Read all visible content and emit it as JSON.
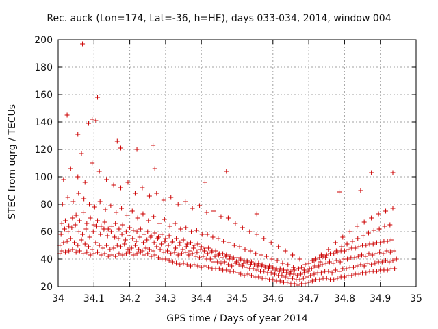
{
  "chart_data": {
    "type": "scatter",
    "title": "Rec. auck (Lon=174, Lat=-36, h=HE), days 033-034, 2014, window 004",
    "xlabel": "GPS time / Days of year 2014",
    "ylabel": "STEC from uqrg / TECUs",
    "xlim": [
      34,
      35
    ],
    "ylim": [
      20,
      200
    ],
    "xticks": [
      34,
      34.1,
      34.2,
      34.3,
      34.4,
      34.5,
      34.6,
      34.7,
      34.8,
      34.9,
      35
    ],
    "xtick_labels": [
      "34",
      "34.1",
      "34.2",
      "34.3",
      "34.4",
      "34.5",
      "34.6",
      "34.7",
      "34.8",
      "34.9",
      "35"
    ],
    "yticks": [
      20,
      40,
      60,
      80,
      100,
      120,
      140,
      160,
      180,
      200
    ],
    "ytick_labels": [
      "20",
      "40",
      "60",
      "80",
      "100",
      "120",
      "140",
      "160",
      "180",
      "200"
    ],
    "grid": true,
    "marker": "+",
    "color": "#cc0000",
    "series": [
      {
        "x": [
          34.005,
          34.01,
          34.02,
          34.03,
          34.04,
          34.05,
          34.06,
          34.07,
          34.08,
          34.09,
          34.1,
          34.11,
          34.12,
          34.13,
          34.14,
          34.15,
          34.16,
          34.17,
          34.18,
          34.19,
          34.2,
          34.21,
          34.22,
          34.23,
          34.24,
          34.25,
          34.26,
          34.27,
          34.28,
          34.29,
          34.3,
          34.31,
          34.32,
          34.33,
          34.34,
          34.35,
          34.36,
          34.37,
          34.38,
          34.39,
          34.4,
          34.41,
          34.42,
          34.43,
          34.44,
          34.45,
          34.46,
          34.47,
          34.48,
          34.49,
          34.5,
          34.51,
          34.52,
          34.53,
          34.54,
          34.55,
          34.56,
          34.57,
          34.58,
          34.59,
          34.6,
          34.61,
          34.62,
          34.63,
          34.64,
          34.65,
          34.66,
          34.67,
          34.68,
          34.69,
          34.7,
          34.71,
          34.72,
          34.73,
          34.74,
          34.75,
          34.76,
          34.77,
          34.78,
          34.79,
          34.8,
          34.81,
          34.82,
          34.83,
          34.84,
          34.85,
          34.86,
          34.87,
          34.88,
          34.89,
          34.9,
          34.91,
          34.92,
          34.93,
          34.94
        ],
        "y": [
          44,
          46,
          45,
          46,
          47,
          45,
          46,
          44,
          45,
          43,
          44,
          45,
          43,
          44,
          42,
          43,
          42,
          44,
          43,
          44,
          45,
          43,
          44,
          45,
          43,
          44,
          42,
          43,
          41,
          40,
          40,
          39,
          38,
          37,
          36,
          37,
          36,
          35,
          36,
          35,
          34,
          35,
          34,
          33,
          33,
          33,
          32,
          32,
          31,
          31,
          30,
          29,
          28,
          29,
          28,
          27,
          27,
          26,
          26,
          25,
          25,
          24,
          24,
          23,
          23,
          22,
          22,
          21,
          22,
          22,
          23,
          24,
          25,
          25,
          26,
          26,
          25,
          25,
          26,
          27,
          27,
          28,
          28,
          29,
          29,
          30,
          30,
          31,
          31,
          31,
          32,
          32,
          32,
          33,
          33
        ]
      },
      {
        "x": [
          34.005,
          34.015,
          34.025,
          34.035,
          34.045,
          34.055,
          34.065,
          34.075,
          34.085,
          34.095,
          34.105,
          34.115,
          34.125,
          34.135,
          34.145,
          34.155,
          34.165,
          34.175,
          34.185,
          34.195,
          34.205,
          34.215,
          34.225,
          34.235,
          34.245,
          34.255,
          34.265,
          34.275,
          34.285,
          34.295,
          34.305,
          34.315,
          34.325,
          34.335,
          34.345,
          34.355,
          34.365,
          34.375,
          34.385,
          34.395,
          34.405,
          34.415,
          34.425,
          34.435,
          34.445,
          34.455,
          34.465,
          34.475,
          34.485,
          34.495,
          34.505,
          34.515,
          34.525,
          34.535,
          34.545,
          34.555,
          34.565,
          34.575,
          34.585,
          34.595,
          34.605,
          34.615,
          34.625,
          34.635,
          34.645,
          34.655,
          34.665,
          34.675,
          34.685,
          34.695,
          34.705,
          34.715,
          34.725,
          34.735,
          34.745,
          34.755,
          34.765,
          34.775,
          34.785,
          34.795,
          34.805,
          34.815,
          34.825,
          34.835,
          34.845,
          34.855,
          34.865,
          34.875,
          34.885,
          34.895,
          34.905,
          34.915,
          34.925,
          34.935,
          34.945
        ],
        "y": [
          50,
          52,
          53,
          55,
          52,
          50,
          54,
          51,
          49,
          47,
          52,
          50,
          48,
          50,
          47,
          48,
          50,
          49,
          51,
          47,
          48,
          50,
          47,
          46,
          48,
          47,
          46,
          49,
          47,
          45,
          46,
          44,
          45,
          43,
          44,
          45,
          43,
          44,
          42,
          41,
          42,
          40,
          40,
          38,
          38,
          37,
          38,
          36,
          35,
          37,
          36,
          35,
          34,
          33,
          33,
          32,
          31,
          31,
          30,
          30,
          29,
          28,
          28,
          27,
          26,
          26,
          25,
          25,
          26,
          27,
          28,
          29,
          30,
          30,
          31,
          31,
          30,
          32,
          31,
          33,
          33,
          34,
          34,
          35,
          36,
          35,
          37,
          36,
          37,
          38,
          38,
          39,
          38,
          39,
          40
        ]
      },
      {
        "x": [
          34.008,
          34.018,
          34.028,
          34.038,
          34.048,
          34.058,
          34.068,
          34.078,
          34.088,
          34.098,
          34.108,
          34.118,
          34.128,
          34.138,
          34.148,
          34.158,
          34.168,
          34.178,
          34.188,
          34.198,
          34.208,
          34.218,
          34.228,
          34.238,
          34.248,
          34.258,
          34.268,
          34.278,
          34.288,
          34.298,
          34.308,
          34.318,
          34.328,
          34.338,
          34.348,
          34.358,
          34.368,
          34.378,
          34.388,
          34.398,
          34.408,
          34.418,
          34.428,
          34.438,
          34.448,
          34.458,
          34.468,
          34.478,
          34.488,
          34.498,
          34.508,
          34.518,
          34.528,
          34.538,
          34.548,
          34.558,
          34.568,
          34.578,
          34.588,
          34.598,
          34.608,
          34.618,
          34.628,
          34.638,
          34.648,
          34.658,
          34.668,
          34.678,
          34.688,
          34.698,
          34.708,
          34.718,
          34.728,
          34.738,
          34.748,
          34.758,
          34.768,
          34.778,
          34.788,
          34.798,
          34.808,
          34.818,
          34.828,
          34.838,
          34.848,
          34.858,
          34.868,
          34.878,
          34.888,
          34.898,
          34.908,
          34.918,
          34.928,
          34.938
        ],
        "y": [
          58,
          62,
          60,
          63,
          65,
          60,
          58,
          62,
          56,
          60,
          64,
          58,
          62,
          57,
          60,
          56,
          55,
          58,
          54,
          57,
          55,
          53,
          56,
          52,
          54,
          56,
          52,
          55,
          51,
          53,
          50,
          52,
          48,
          50,
          47,
          49,
          46,
          48,
          45,
          47,
          46,
          44,
          45,
          42,
          43,
          41,
          42,
          40,
          40,
          38,
          39,
          37,
          38,
          36,
          36,
          35,
          35,
          34,
          33,
          33,
          32,
          31,
          30,
          30,
          29,
          29,
          28,
          29,
          30,
          31,
          33,
          34,
          35,
          36,
          37,
          38,
          37,
          39,
          38,
          40,
          40,
          41,
          41,
          42,
          43,
          42,
          44,
          43,
          44,
          45,
          44,
          46,
          45,
          46
        ]
      },
      {
        "x": [
          34.01,
          34.02,
          34.03,
          34.04,
          34.05,
          34.06,
          34.07,
          34.08,
          34.09,
          34.1,
          34.11,
          34.12,
          34.13,
          34.14,
          34.15,
          34.16,
          34.17,
          34.18,
          34.19,
          34.2,
          34.21,
          34.22,
          34.23,
          34.24,
          34.25,
          34.26,
          34.27,
          34.28,
          34.29,
          34.3,
          34.31,
          34.32,
          34.33,
          34.34,
          34.35,
          34.36,
          34.37,
          34.38,
          34.39,
          34.4,
          34.41,
          34.42,
          34.43,
          34.44,
          34.45,
          34.46,
          34.47,
          34.48,
          34.49,
          34.5,
          34.51,
          34.52,
          34.53,
          34.54,
          34.55,
          34.56,
          34.57,
          34.58,
          34.59,
          34.6,
          34.61,
          34.62,
          34.63,
          34.64,
          34.65,
          34.66,
          34.67,
          34.68,
          34.69,
          34.7,
          34.71,
          34.72,
          34.73,
          34.74,
          34.75,
          34.76,
          34.77,
          34.78,
          34.79,
          34.8,
          34.81,
          34.82,
          34.83,
          34.84,
          34.85,
          34.86,
          34.87,
          34.88,
          34.89,
          34.9,
          34.91,
          34.92,
          34.93
        ],
        "y": [
          66,
          68,
          64,
          70,
          72,
          68,
          74,
          66,
          70,
          65,
          68,
          64,
          67,
          62,
          64,
          66,
          62,
          65,
          60,
          63,
          61,
          60,
          62,
          58,
          60,
          57,
          59,
          56,
          58,
          55,
          57,
          53,
          55,
          52,
          54,
          51,
          52,
          50,
          51,
          49,
          48,
          48,
          46,
          46,
          44,
          44,
          43,
          42,
          41,
          41,
          40,
          39,
          39,
          38,
          37,
          37,
          36,
          35,
          35,
          34,
          33,
          33,
          32,
          32,
          31,
          32,
          33,
          34,
          36,
          37,
          39,
          40,
          41,
          42,
          43,
          44,
          44,
          45,
          46,
          46,
          47,
          48,
          48,
          49,
          50,
          50,
          51,
          51,
          52,
          52,
          53,
          53,
          54
        ]
      },
      {
        "x": [
          34.012,
          34.027,
          34.042,
          34.057,
          34.072,
          34.087,
          34.102,
          34.117,
          34.132,
          34.147,
          34.162,
          34.177,
          34.192,
          34.207,
          34.222,
          34.237,
          34.252,
          34.267,
          34.282,
          34.297,
          34.312,
          34.327,
          34.342,
          34.357,
          34.372,
          34.387,
          34.402,
          34.417,
          34.432,
          34.447,
          34.462,
          34.477,
          34.492,
          34.507,
          34.522,
          34.537,
          34.552,
          34.567,
          34.582,
          34.597,
          34.612,
          34.627,
          34.642,
          34.657,
          34.672,
          34.687,
          34.702,
          34.717,
          34.732,
          34.747,
          34.762,
          34.777,
          34.792,
          34.807,
          34.822,
          34.837,
          34.852,
          34.867,
          34.882,
          34.897,
          34.912,
          34.927
        ],
        "y": [
          80,
          85,
          82,
          88,
          84,
          80,
          78,
          82,
          76,
          79,
          74,
          77,
          72,
          75,
          70,
          73,
          68,
          71,
          66,
          69,
          64,
          66,
          62,
          63,
          60,
          61,
          58,
          58,
          56,
          55,
          53,
          52,
          50,
          49,
          47,
          46,
          44,
          43,
          42,
          40,
          39,
          37,
          36,
          34,
          33,
          32,
          33,
          35,
          38,
          41,
          44,
          46,
          49,
          51,
          53,
          55,
          57,
          59,
          61,
          62,
          64,
          65
        ]
      },
      {
        "x": [
          34.015,
          34.035,
          34.055,
          34.075,
          34.095,
          34.115,
          34.135,
          34.155,
          34.175,
          34.195,
          34.215,
          34.235,
          34.255,
          34.275,
          34.295,
          34.315,
          34.335,
          34.355,
          34.375,
          34.395,
          34.415,
          34.435,
          34.455,
          34.475,
          34.495,
          34.515,
          34.535,
          34.555,
          34.575,
          34.595,
          34.615,
          34.635,
          34.655,
          34.675,
          34.695,
          34.715,
          34.735,
          34.755,
          34.775,
          34.795,
          34.815,
          34.835,
          34.855,
          34.875,
          34.895,
          34.915,
          34.935
        ],
        "y": [
          98,
          106,
          100,
          96,
          110,
          104,
          98,
          94,
          92,
          96,
          88,
          92,
          86,
          88,
          83,
          85,
          80,
          82,
          77,
          79,
          74,
          75,
          71,
          70,
          66,
          63,
          60,
          58,
          55,
          52,
          49,
          46,
          43,
          40,
          37,
          39,
          43,
          47,
          52,
          56,
          60,
          64,
          67,
          70,
          73,
          75,
          77
        ]
      },
      {
        "x": [
          34.025,
          34.055,
          34.065,
          34.085,
          34.095,
          34.105,
          34.11,
          34.165,
          34.175,
          34.22,
          34.265,
          34.27,
          34.41,
          34.47,
          34.555,
          34.785,
          34.845,
          34.875,
          34.935
        ],
        "y": [
          145,
          131,
          117,
          139,
          142,
          141,
          158,
          126,
          121,
          120,
          123,
          106,
          96,
          104,
          73,
          89,
          90,
          103,
          103
        ]
      },
      {
        "x": [
          34.068
        ],
        "y": [
          197
        ]
      }
    ]
  }
}
